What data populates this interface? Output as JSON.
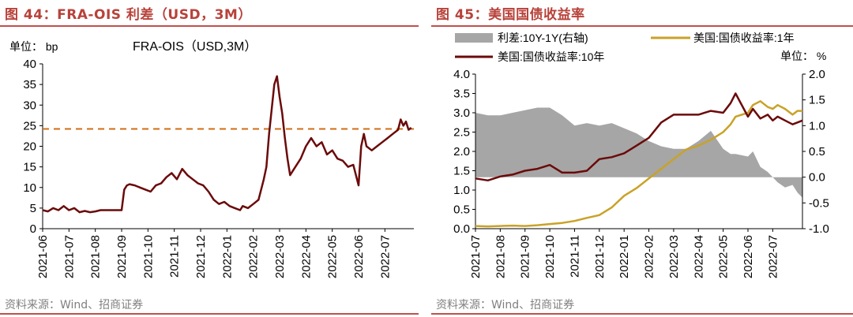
{
  "left": {
    "figure_title": "图 44：FRA-OIS 利差（USD，3M）",
    "source": "资料来源：Wind、招商证券",
    "chart_data": {
      "type": "line",
      "title": "FRA-OIS（USD,3M）",
      "unit_label": "单位： bp",
      "ylim": [
        0,
        40
      ],
      "yticks": [
        "0",
        "5",
        "10",
        "15",
        "20",
        "25",
        "30",
        "35",
        "40"
      ],
      "xlim": [
        0,
        14.1
      ],
      "xticks": [
        "2021-06",
        "2021-07",
        "2021-08",
        "2021-09",
        "2021-10",
        "2021-11",
        "2021-12",
        "2022-01",
        "2022-02",
        "2022-03",
        "2022-04",
        "2022-05",
        "2022-06",
        "2022-07"
      ],
      "reference_line": 24.2,
      "colors": {
        "series": "#6b0a0a",
        "reference": "#d06c14"
      },
      "series": [
        {
          "name": "FRA-OIS（USD,3M）",
          "x": [
            0,
            0.2,
            0.4,
            0.6,
            0.8,
            1.0,
            1.2,
            1.4,
            1.6,
            1.8,
            2.0,
            2.2,
            2.4,
            2.6,
            2.8,
            3.0,
            3.1,
            3.2,
            3.3,
            3.5,
            3.7,
            3.9,
            4.1,
            4.3,
            4.5,
            4.7,
            4.9,
            5.1,
            5.3,
            5.5,
            5.7,
            5.9,
            6.1,
            6.3,
            6.5,
            6.7,
            6.9,
            7.1,
            7.3,
            7.5,
            7.6,
            7.8,
            8.0,
            8.2,
            8.4,
            8.5,
            8.6,
            8.8,
            8.9,
            9.0,
            9.1,
            9.2,
            9.3,
            9.4,
            9.6,
            9.8,
            10.0,
            10.2,
            10.4,
            10.6,
            10.8,
            11.0,
            11.2,
            11.4,
            11.6,
            11.8,
            12.0,
            12.1,
            12.2,
            12.3,
            12.5,
            12.7,
            12.9,
            13.1,
            13.3,
            13.5,
            13.6,
            13.7,
            13.8,
            13.9,
            14.0
          ],
          "values": [
            4.5,
            4.2,
            5.0,
            4.5,
            5.5,
            4.5,
            5.0,
            4.0,
            4.3,
            4.0,
            4.2,
            4.5,
            4.5,
            4.5,
            4.5,
            4.5,
            9.5,
            10.5,
            10.8,
            10.5,
            10.0,
            9.5,
            9.0,
            10.5,
            11.0,
            12.5,
            13.5,
            12.0,
            14.5,
            13.0,
            12.0,
            11.0,
            10.5,
            9.0,
            7.0,
            6.0,
            6.5,
            5.5,
            5.0,
            4.5,
            5.5,
            5.0,
            6.0,
            7.0,
            12.0,
            15.0,
            23.0,
            35.0,
            37.0,
            32.0,
            28.0,
            22.0,
            17.0,
            13.0,
            15.0,
            17.0,
            20.0,
            22.0,
            20.0,
            21.0,
            18.0,
            19.0,
            17.0,
            16.5,
            15.0,
            15.5,
            10.5,
            20.0,
            23.0,
            20.0,
            19.0,
            20.0,
            21.0,
            22.0,
            23.0,
            24.0,
            26.5,
            25.0,
            26.0,
            24.0,
            24.5
          ]
        }
      ]
    }
  },
  "right": {
    "figure_title": "图 45：美国国债收益率",
    "source": "资料来源：Wind、招商证券",
    "chart_data": {
      "type": "line",
      "legend": [
        "利差:10Y-1Y(右轴)",
        "美国:国债收益率:1年",
        "美国:国债收益率:10年"
      ],
      "unit_label": "单位： %",
      "ylim_left": [
        0,
        4
      ],
      "yticks_left": [
        "0.0",
        "0.5",
        "1.0",
        "1.5",
        "2.0",
        "2.5",
        "3.0",
        "3.5",
        "4.0"
      ],
      "ylim_right": [
        -1,
        2
      ],
      "yticks_right": [
        "-1.0",
        "-0.5",
        "0.0",
        "0.5",
        "1.0",
        "1.5",
        "2.0"
      ],
      "xlim": [
        0,
        13.2
      ],
      "xticks": [
        "2021-07",
        "2021-08",
        "2021-09",
        "2021-10",
        "2021-11",
        "2021-12",
        "2022-01",
        "2022-02",
        "2022-03",
        "2022-04",
        "2022-05",
        "2022-06",
        "2022-07"
      ],
      "colors": {
        "spread": "#a6a6a6",
        "y1": "#c9a227",
        "y10": "#6b0a0a"
      },
      "series": [
        {
          "name": "利差:10Y-1Y(右轴)",
          "axis": "right",
          "kind": "area",
          "x": [
            0,
            0.5,
            1.0,
            1.5,
            2.0,
            2.5,
            3.0,
            3.5,
            4.0,
            4.5,
            5.0,
            5.5,
            6.0,
            6.5,
            7.0,
            7.5,
            8.0,
            8.5,
            9.0,
            9.5,
            10.0,
            10.3,
            10.5,
            11.0,
            11.2,
            11.5,
            11.8,
            12.0,
            12.2,
            12.5,
            12.8,
            13.0,
            13.2
          ],
          "values": [
            1.25,
            1.2,
            1.2,
            1.25,
            1.3,
            1.35,
            1.35,
            1.2,
            1.0,
            1.05,
            1.0,
            1.05,
            0.95,
            0.85,
            0.7,
            0.6,
            0.55,
            0.55,
            0.7,
            0.9,
            0.55,
            0.45,
            0.45,
            0.4,
            0.5,
            0.2,
            0.1,
            0.0,
            -0.1,
            -0.2,
            -0.15,
            -0.3,
            -0.4
          ]
        },
        {
          "name": "美国:国债收益率:1年",
          "axis": "left",
          "kind": "line",
          "x": [
            0,
            0.5,
            1.0,
            1.5,
            2.0,
            2.5,
            3.0,
            3.5,
            4.0,
            4.5,
            5.0,
            5.5,
            6.0,
            6.5,
            7.0,
            7.5,
            8.0,
            8.5,
            9.0,
            9.5,
            10.0,
            10.3,
            10.5,
            11.0,
            11.2,
            11.5,
            11.8,
            12.0,
            12.2,
            12.5,
            12.8,
            13.0,
            13.2
          ],
          "values": [
            0.07,
            0.06,
            0.07,
            0.08,
            0.07,
            0.09,
            0.12,
            0.15,
            0.2,
            0.28,
            0.35,
            0.55,
            0.85,
            1.05,
            1.3,
            1.55,
            1.8,
            2.05,
            2.15,
            2.3,
            2.5,
            2.7,
            2.9,
            3.0,
            3.2,
            3.3,
            3.15,
            3.1,
            3.2,
            3.1,
            2.95,
            3.05,
            3.05
          ]
        },
        {
          "name": "美国:国债收益率:10年",
          "axis": "left",
          "kind": "line",
          "x": [
            0,
            0.5,
            1.0,
            1.5,
            2.0,
            2.5,
            3.0,
            3.5,
            4.0,
            4.5,
            5.0,
            5.5,
            6.0,
            6.5,
            7.0,
            7.5,
            8.0,
            8.5,
            9.0,
            9.5,
            10.0,
            10.3,
            10.5,
            11.0,
            11.2,
            11.5,
            11.8,
            12.0,
            12.2,
            12.5,
            12.8,
            13.0,
            13.2
          ],
          "values": [
            1.3,
            1.25,
            1.35,
            1.4,
            1.5,
            1.55,
            1.65,
            1.45,
            1.45,
            1.5,
            1.8,
            1.85,
            1.95,
            2.15,
            2.35,
            2.75,
            2.95,
            2.95,
            2.95,
            3.05,
            3.0,
            3.25,
            3.5,
            2.9,
            3.1,
            2.85,
            2.95,
            2.8,
            2.9,
            2.8,
            2.7,
            2.75,
            2.8
          ]
        }
      ]
    }
  }
}
